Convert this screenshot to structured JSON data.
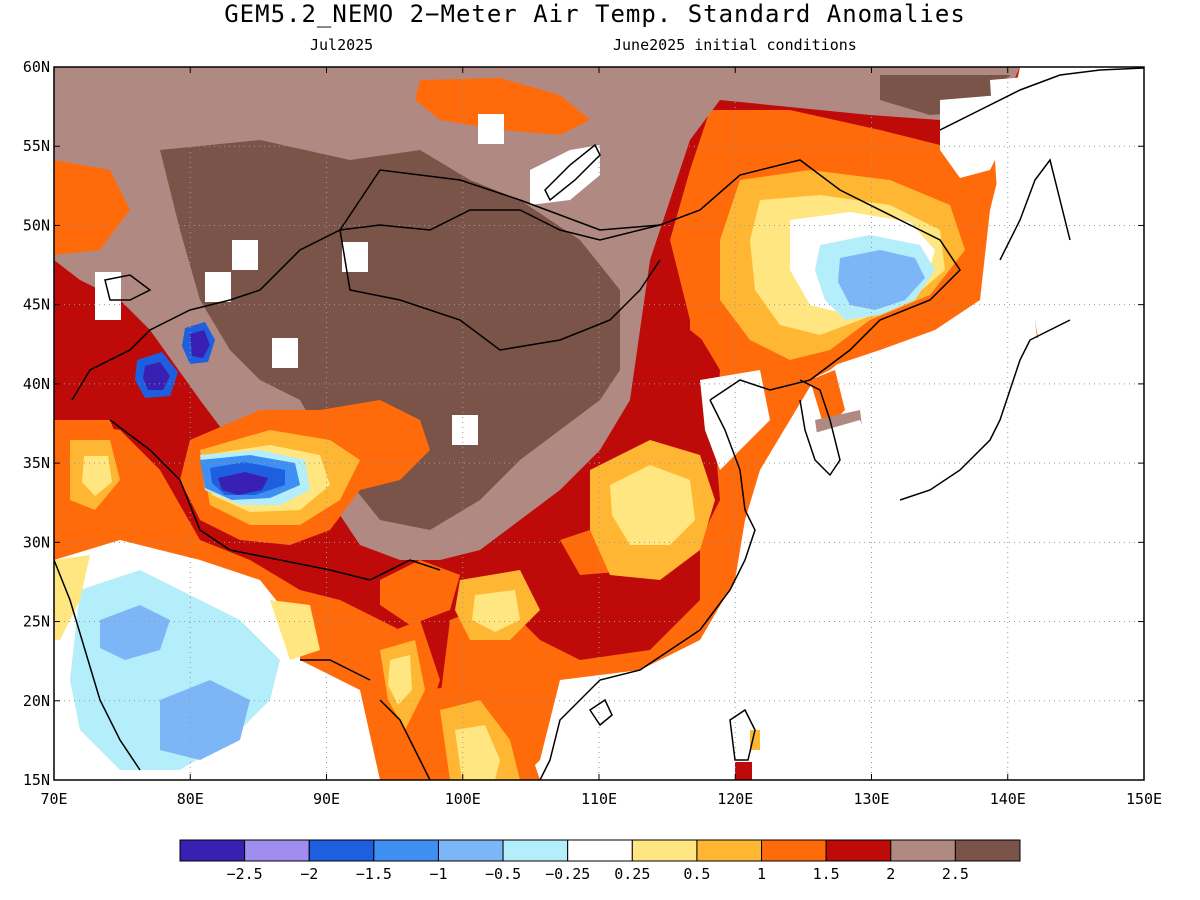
{
  "title": "GEM5.2_NEMO 2−Meter Air Temp. Standard Anomalies",
  "subtitle_left": "Jul2025",
  "subtitle_right": "June2025 initial conditions",
  "map": {
    "lon_range": [
      70,
      150
    ],
    "lat_range": [
      15,
      60
    ],
    "lon_ticks": [
      "70E",
      "80E",
      "90E",
      "100E",
      "110E",
      "120E",
      "130E",
      "140E",
      "150E"
    ],
    "lat_ticks": [
      "60N",
      "55N",
      "50N",
      "45N",
      "40N",
      "35N",
      "30N",
      "25N",
      "20N",
      "15N"
    ],
    "grid": "dotted"
  },
  "colorbar": {
    "colors": [
      "#3a1fb3",
      "#9f8ef0",
      "#1e5fe0",
      "#3f8ff2",
      "#7cb6f6",
      "#b4eefa",
      "#ffffff",
      "#ffe680",
      "#ffb733",
      "#ff6a0a",
      "#bf0a0a",
      "#b08a82",
      "#7a5448"
    ],
    "labels": [
      "−2.5",
      "−2",
      "−1.5",
      "−1",
      "−0.5",
      "−0.25",
      "0.25",
      "0.5",
      "1",
      "1.5",
      "2",
      "2.5"
    ]
  }
}
